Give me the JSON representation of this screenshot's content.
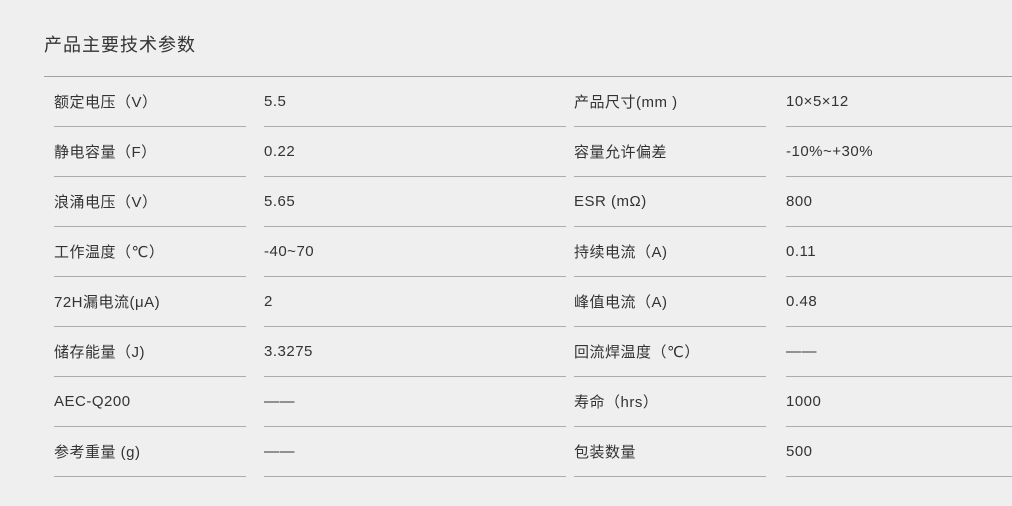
{
  "page": {
    "title": "产品主要技术参数",
    "colors": {
      "background": "#efefef",
      "text": "#333333",
      "divider_line": "#a2a2a2",
      "cell_line": "#acacac"
    }
  },
  "table": {
    "rows": [
      [
        "额定电压（V）",
        "5.5",
        "产品尺寸(mm )",
        "10×5×12"
      ],
      [
        "静电容量（F）",
        "0.22",
        "容量允许偏差",
        "-10%~+30%"
      ],
      [
        "浪涌电压（V）",
        "5.65",
        "ESR (mΩ)",
        "800"
      ],
      [
        "工作温度（℃）",
        "-40~70",
        "持续电流（A)",
        "0.11"
      ],
      [
        "72H漏电流(μA)",
        "2",
        "峰值电流（A)",
        "0.48"
      ],
      [
        "储存能量（J)",
        "3.3275",
        "回流焊温度（℃）",
        "——"
      ],
      [
        "AEC-Q200",
        "——",
        "寿命（hrs）",
        "1000"
      ],
      [
        "参考重量 (g)",
        "——",
        "包装数量",
        "500"
      ]
    ]
  }
}
